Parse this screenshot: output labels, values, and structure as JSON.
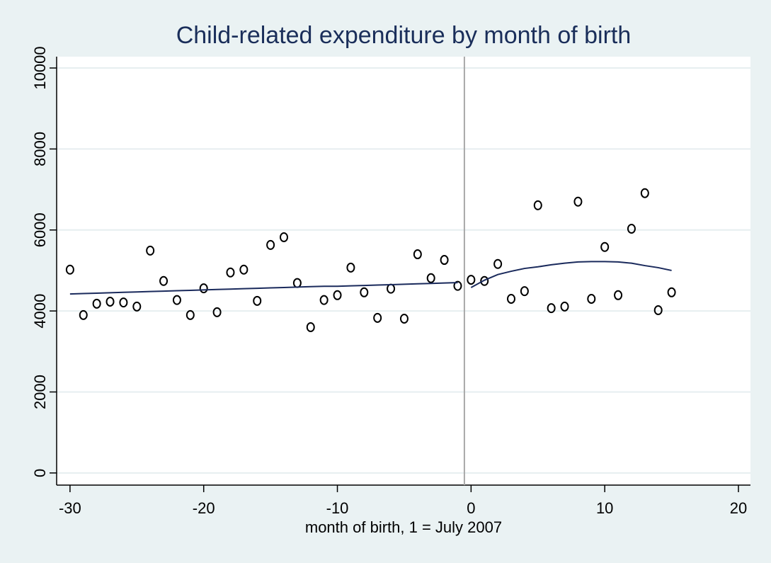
{
  "chart_data": {
    "type": "scatter",
    "title": "Child-related expenditure by month of birth",
    "x_label": "month of birth, 1 = July 2007",
    "xlim": [
      -31,
      20.9
    ],
    "ylim": [
      -300,
      10280
    ],
    "xticks": [
      -30,
      -20,
      -10,
      0,
      10,
      20
    ],
    "yticks": [
      0,
      2000,
      4000,
      6000,
      8000,
      10000
    ],
    "grid": true,
    "reference_line": {
      "x": -0.5,
      "color": "#a8a8a8"
    },
    "series": [
      {
        "mode": "markers",
        "color": "#000000",
        "x": [
          -30,
          -29,
          -28,
          -27,
          -26,
          -25,
          -24,
          -23,
          -22,
          -21,
          -20,
          -19,
          -18,
          -17,
          -16,
          -15,
          -14,
          -13,
          -12,
          -11,
          -10,
          -9,
          -8,
          -7,
          -6,
          -5,
          -4,
          -3,
          -2,
          -1,
          0,
          1,
          2,
          3,
          4,
          5,
          6,
          7,
          8,
          9,
          10,
          11,
          12,
          13,
          14,
          15
        ],
        "values": [
          5020,
          3900,
          4180,
          4230,
          4210,
          4110,
          5490,
          4740,
          4270,
          3900,
          4560,
          3970,
          4950,
          5020,
          4250,
          5630,
          5820,
          4690,
          3600,
          4270,
          4390,
          5070,
          4460,
          3830,
          4550,
          3810,
          5400,
          4810,
          5260,
          4620,
          4770,
          4740,
          5160,
          4300,
          4490,
          6610,
          4070,
          4110,
          6700,
          4300,
          5580,
          4390,
          6030,
          6910,
          4020,
          4460
        ]
      },
      {
        "mode": "line",
        "color": "#1a2a5c",
        "x": [
          -30,
          -29,
          -28,
          -27,
          -26,
          -25,
          -24,
          -23,
          -22,
          -21,
          -20,
          -19,
          -18,
          -17,
          -16,
          -15,
          -14,
          -13,
          -12,
          -11,
          -10,
          -9,
          -8,
          -7,
          -6,
          -5,
          -4,
          -3,
          -2,
          -1
        ],
        "values": [
          4420,
          4430,
          4440,
          4450,
          4460,
          4470,
          4480,
          4490,
          4500,
          4510,
          4520,
          4530,
          4540,
          4550,
          4560,
          4570,
          4580,
          4590,
          4600,
          4610,
          4610,
          4620,
          4630,
          4640,
          4650,
          4660,
          4670,
          4680,
          4690,
          4700
        ]
      },
      {
        "mode": "line",
        "color": "#1a2a5c",
        "x": [
          0,
          1,
          2,
          3,
          4,
          5,
          6,
          7,
          8,
          9,
          10,
          11,
          12,
          13,
          14,
          15
        ],
        "values": [
          4580,
          4760,
          4900,
          4980,
          5050,
          5090,
          5140,
          5180,
          5210,
          5220,
          5220,
          5210,
          5180,
          5120,
          5070,
          5000
        ]
      }
    ]
  }
}
